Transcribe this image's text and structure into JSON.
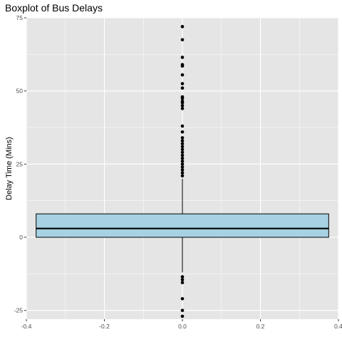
{
  "chart_data": {
    "type": "boxplot",
    "title": "Boxplot of Bus Delays",
    "xlabel": "",
    "ylabel": "Delay Time (Mins)",
    "xlim": [
      -0.4,
      0.4
    ],
    "ylim": [
      -28,
      75
    ],
    "x_ticks": [
      -0.4,
      -0.2,
      0.0,
      0.2,
      0.4
    ],
    "x_tick_labels": [
      "-0.4",
      "-0.2",
      "0.0",
      "0.2",
      "0.4"
    ],
    "y_ticks": [
      -25,
      0,
      25,
      50,
      75
    ],
    "y_tick_labels": [
      "-25",
      "0",
      "25",
      "50",
      "75"
    ],
    "grid": true,
    "box": {
      "x_center": 0.0,
      "x_min": -0.375,
      "x_max": 0.375,
      "q1": 0,
      "median": 3,
      "q3": 8,
      "whisker_low": -12,
      "whisker_high": 20
    },
    "outliers": [
      72,
      67.5,
      61.5,
      59,
      58.5,
      55.5,
      52.5,
      51,
      48,
      47.5,
      46.5,
      46,
      45,
      44,
      38,
      36,
      34,
      33,
      32,
      31,
      30,
      29,
      28,
      27,
      26,
      25,
      24,
      23,
      22,
      21,
      -13.5,
      -14.5,
      -15.5,
      -21,
      -25,
      -27
    ],
    "colors": {
      "panel": "#e5e5e5",
      "grid_major": "#ffffff",
      "box_fill": "#a6d2e3",
      "box_outline": "#000000",
      "point": "#000000"
    }
  }
}
